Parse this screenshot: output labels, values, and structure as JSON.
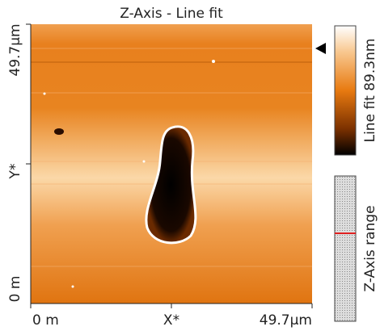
{
  "title": "Z-Axis - Line fit",
  "y_axis": {
    "top": "49.7μm",
    "middle": "Y*",
    "bottom": "0 m"
  },
  "x_axis": {
    "left": "0 m",
    "middle": "X*",
    "right": "49.7μm"
  },
  "colorbar": {
    "label": "Line fit 89.3nm"
  },
  "range_bar": {
    "label": "Z-Axis range"
  }
}
